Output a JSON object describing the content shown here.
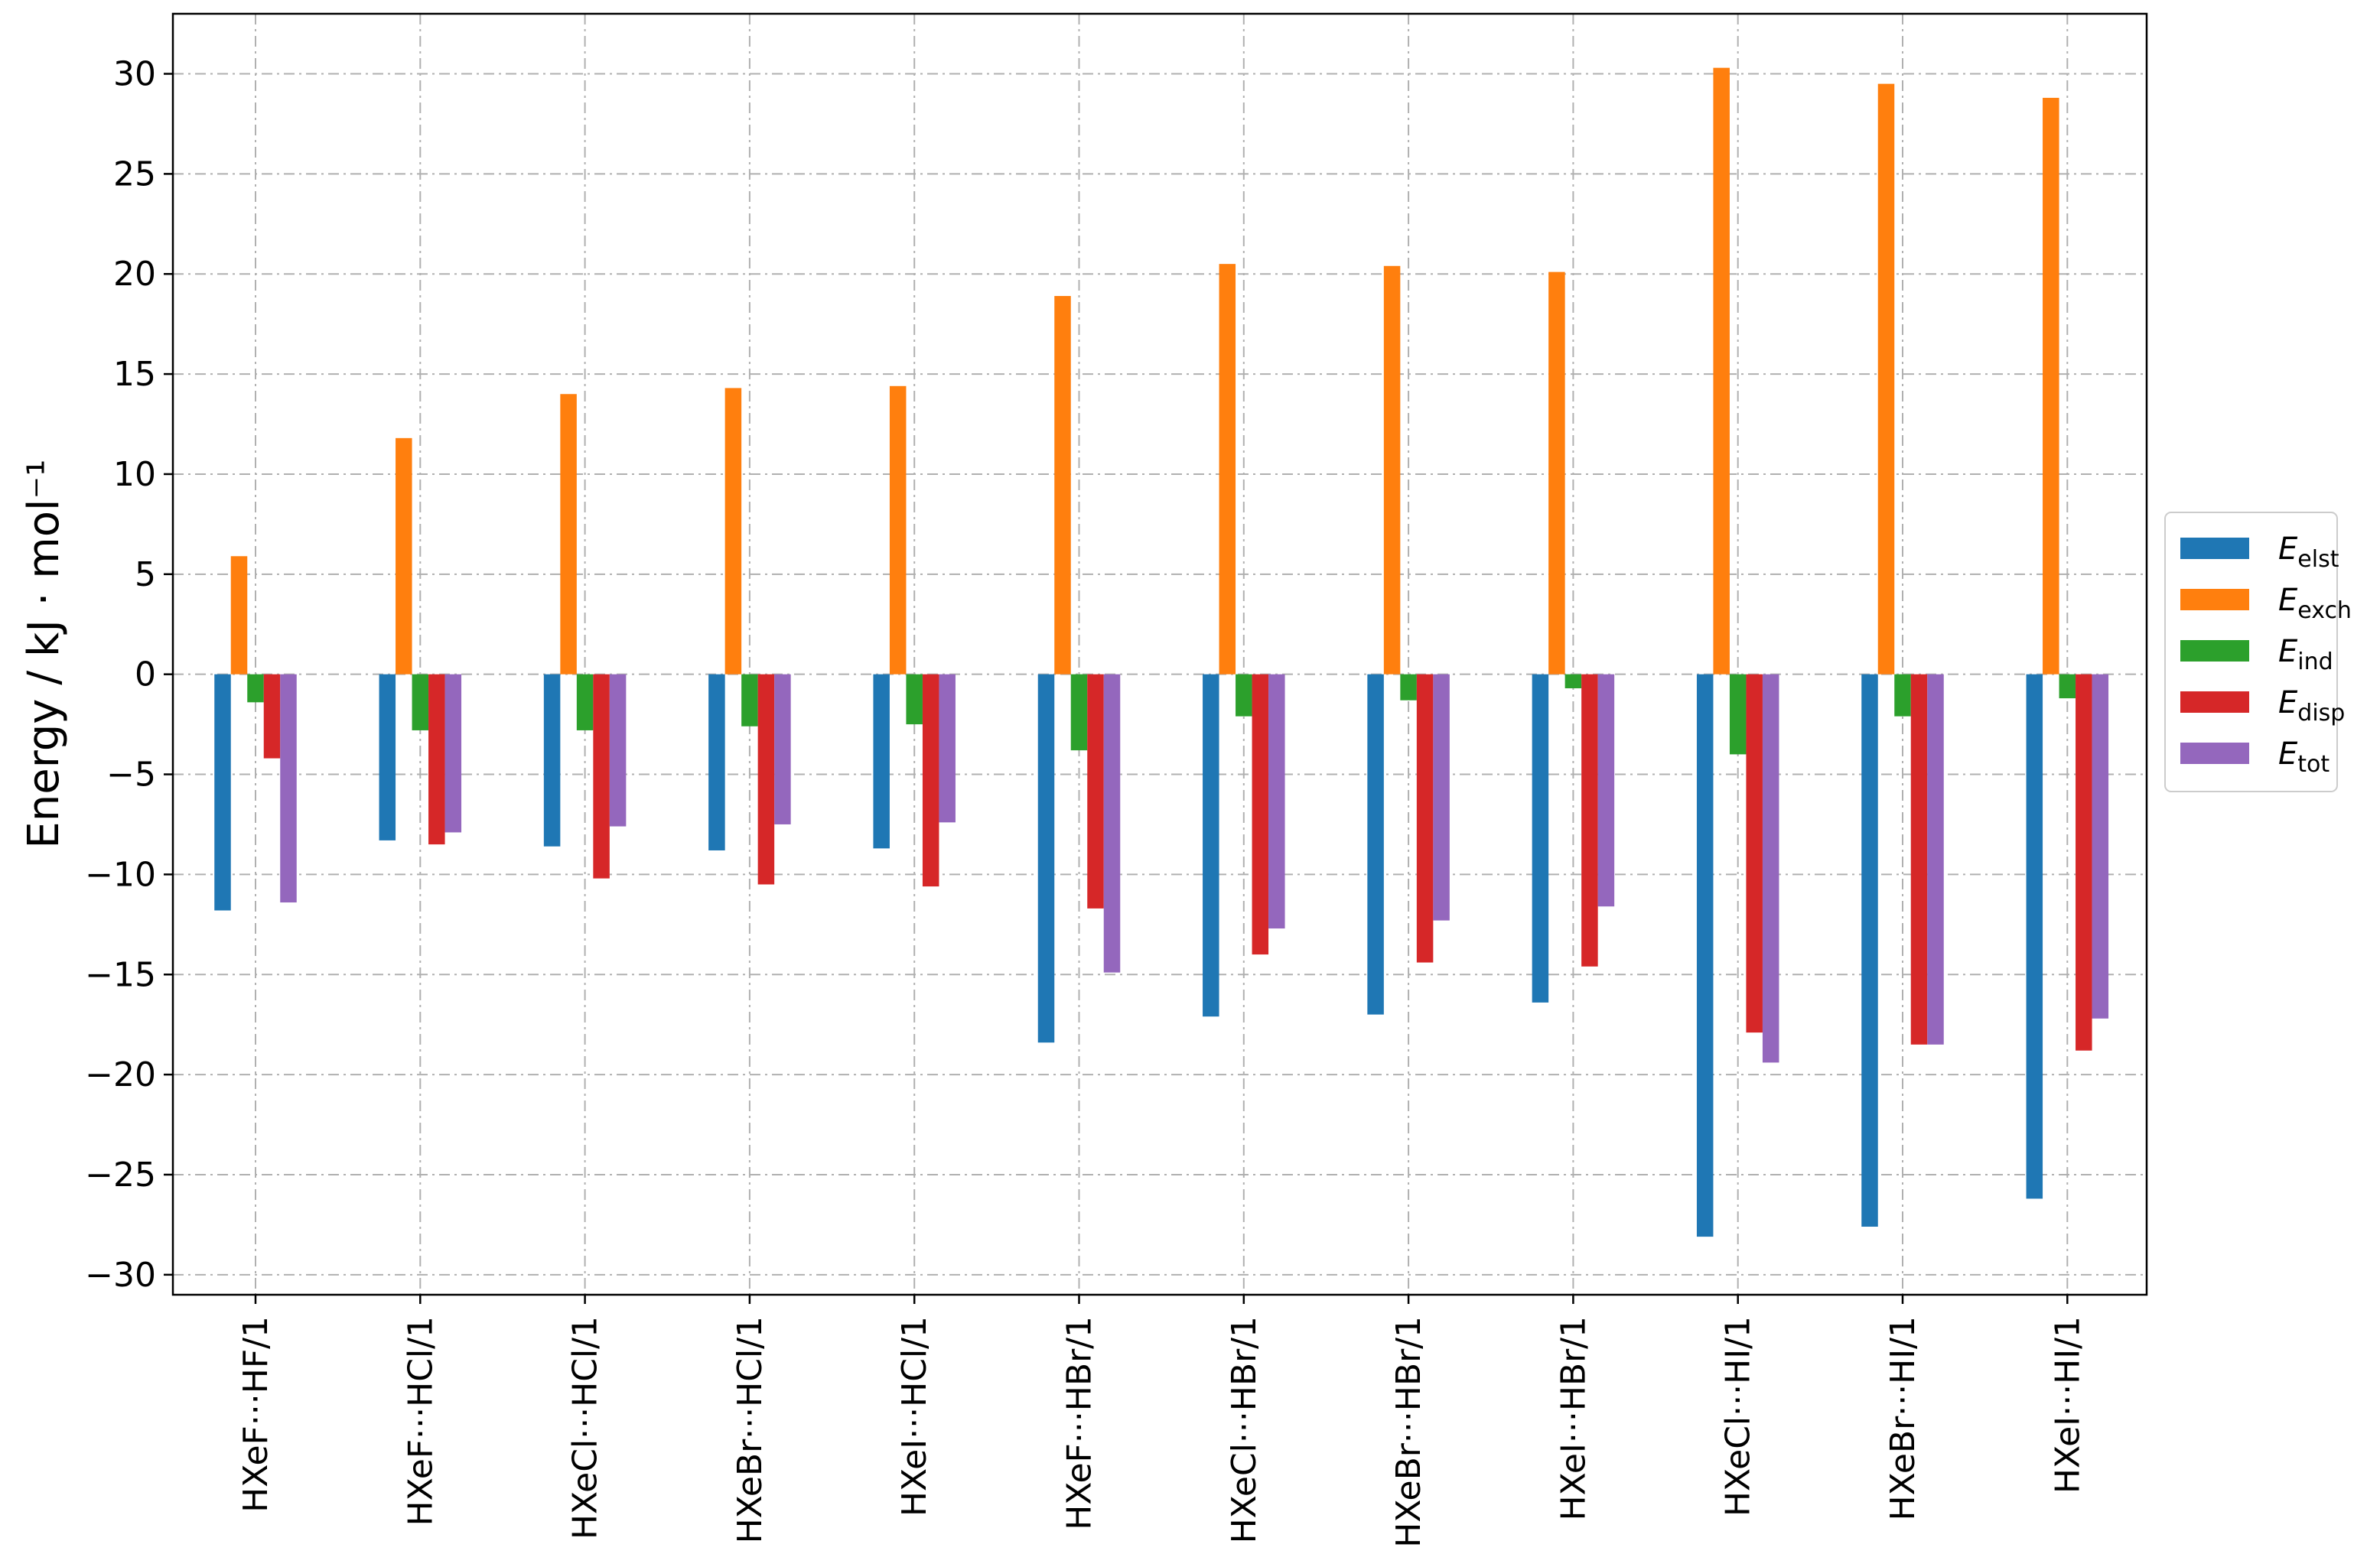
{
  "chart_data": {
    "type": "bar",
    "title": "",
    "xlabel": "",
    "ylabel": "Energy / kJ · mol⁻¹",
    "ylim": [
      -31,
      33
    ],
    "yticks": [
      -30,
      -25,
      -20,
      -15,
      -10,
      -5,
      0,
      5,
      10,
      15,
      20,
      25,
      30
    ],
    "ytick_labels": [
      "−30",
      "−25",
      "−20",
      "−15",
      "−10",
      "−5",
      "0",
      "5",
      "10",
      "15",
      "20",
      "25",
      "30"
    ],
    "grid": true,
    "legend_position": "right",
    "categories": [
      "HXeF···HF/1",
      "HXeF···HCl/1",
      "HXeCl···HCl/1",
      "HXeBr···HCl/1",
      "HXeI···HCl/1",
      "HXeF···HBr/1",
      "HXeCl···HBr/1",
      "HXeBr···HBr/1",
      "HXeI···HBr/1",
      "HXeCl···HI/1",
      "HXeBr···HI/1",
      "HXeI···HI/1"
    ],
    "series": [
      {
        "name": "E_elst",
        "label_main": "E",
        "label_sub": "elst",
        "color": "#1f77b4",
        "values": [
          -11.8,
          -8.3,
          -8.6,
          -8.8,
          -8.7,
          -18.4,
          -17.1,
          -17.0,
          -16.4,
          -28.1,
          -27.6,
          -26.2
        ]
      },
      {
        "name": "E_exch",
        "label_main": "E",
        "label_sub": "exch",
        "color": "#ff7f0e",
        "values": [
          5.9,
          11.8,
          14.0,
          14.3,
          14.4,
          18.9,
          20.5,
          20.4,
          20.1,
          30.3,
          29.5,
          28.8
        ]
      },
      {
        "name": "E_ind",
        "label_main": "E",
        "label_sub": "ind",
        "color": "#2ca02c",
        "values": [
          -1.4,
          -2.8,
          -2.8,
          -2.6,
          -2.5,
          -3.8,
          -2.1,
          -1.3,
          -0.7,
          -4.0,
          -2.1,
          -1.2
        ]
      },
      {
        "name": "E_disp",
        "label_main": "E",
        "label_sub": "disp",
        "color": "#d62728",
        "values": [
          -4.2,
          -8.5,
          -10.2,
          -10.5,
          -10.6,
          -11.7,
          -14.0,
          -14.4,
          -14.6,
          -17.9,
          -18.5,
          -18.8
        ]
      },
      {
        "name": "E_tot",
        "label_main": "E",
        "label_sub": "tot",
        "color": "#9467bd",
        "values": [
          -11.4,
          -7.9,
          -7.6,
          -7.5,
          -7.4,
          -14.9,
          -12.7,
          -12.3,
          -11.6,
          -19.4,
          -18.5,
          -17.2
        ]
      }
    ]
  }
}
